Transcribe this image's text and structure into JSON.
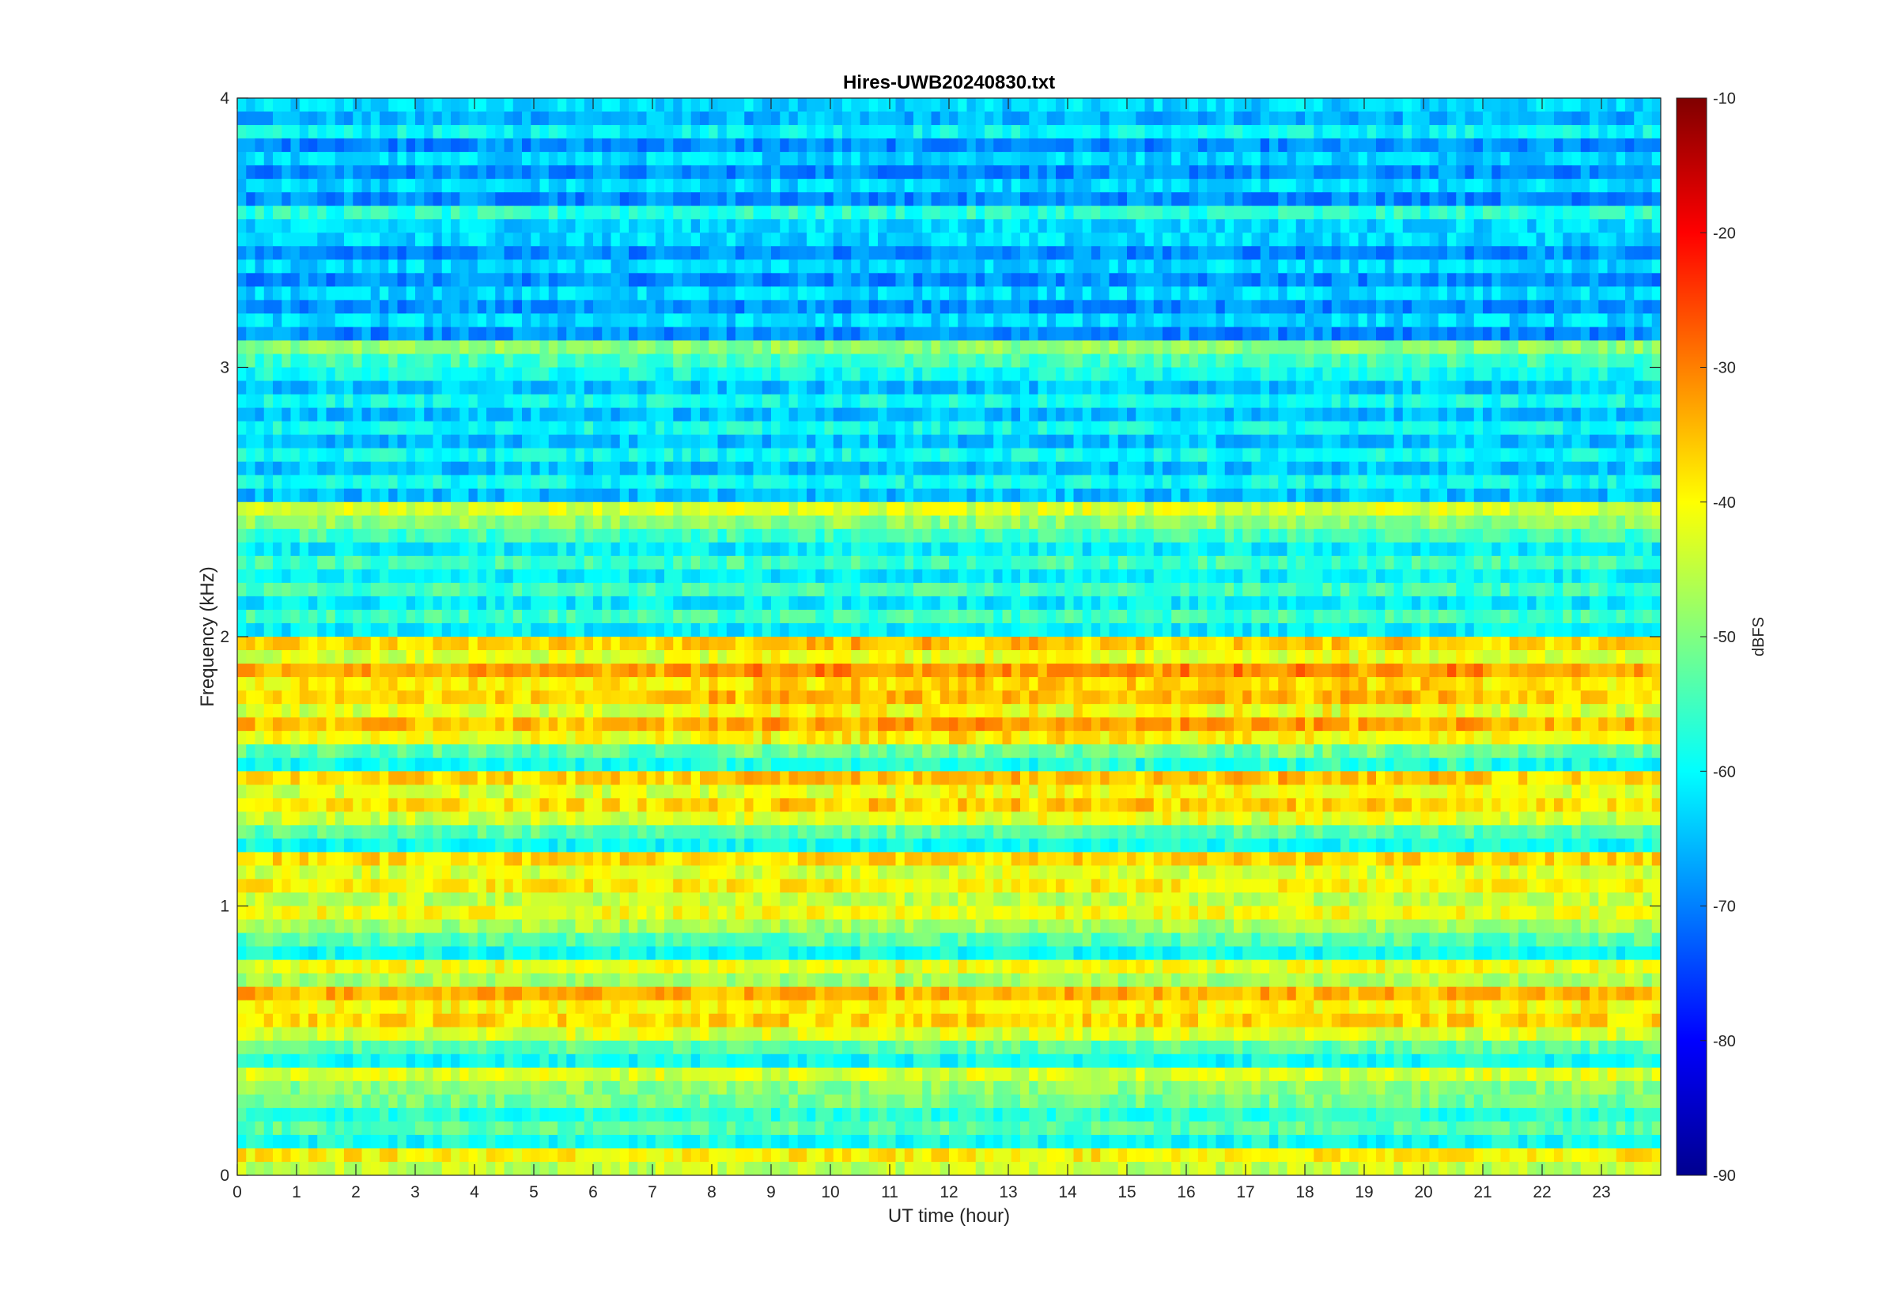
{
  "chart_data": {
    "type": "heatmap",
    "title": "Hires-UWB20240830.txt",
    "xlabel": "UT time (hour)",
    "ylabel": "Frequency (kHz)",
    "xlim": [
      0,
      24
    ],
    "ylim": [
      0,
      4
    ],
    "x_ticks": [
      "0",
      "1",
      "2",
      "3",
      "4",
      "5",
      "6",
      "7",
      "8",
      "9",
      "10",
      "11",
      "12",
      "13",
      "14",
      "15",
      "16",
      "17",
      "18",
      "19",
      "20",
      "21",
      "22",
      "23"
    ],
    "y_ticks": [
      "0",
      "1",
      "2",
      "3",
      "4"
    ],
    "colorbar": {
      "label": "dBFS",
      "range": [
        -90,
        -10
      ],
      "ticks": [
        "-10",
        "-20",
        "-30",
        "-40",
        "-50",
        "-60",
        "-70",
        "-80",
        "-90"
      ],
      "colormap": "jet"
    },
    "bands": [
      {
        "freq_khz": 0.05,
        "level_dbfs": -42
      },
      {
        "freq_khz": 0.15,
        "level_dbfs": -56
      },
      {
        "freq_khz": 0.25,
        "level_dbfs": -54
      },
      {
        "freq_khz": 0.35,
        "level_dbfs": -46
      },
      {
        "freq_khz": 0.55,
        "level_dbfs": -40
      },
      {
        "freq_khz": 0.65,
        "level_dbfs": -37
      },
      {
        "freq_khz": 0.75,
        "level_dbfs": -44
      },
      {
        "freq_khz": 0.95,
        "level_dbfs": -44
      },
      {
        "freq_khz": 1.05,
        "level_dbfs": -42
      },
      {
        "freq_khz": 1.15,
        "level_dbfs": -40
      },
      {
        "freq_khz": 1.35,
        "level_dbfs": -41
      },
      {
        "freq_khz": 1.45,
        "level_dbfs": -40
      },
      {
        "freq_khz": 1.65,
        "level_dbfs": -38
      },
      {
        "freq_khz": 1.75,
        "level_dbfs": -40
      },
      {
        "freq_khz": 1.85,
        "level_dbfs": -36
      },
      {
        "freq_khz": 1.95,
        "level_dbfs": -40
      },
      {
        "freq_khz": 2.45,
        "level_dbfs": -46
      },
      {
        "freq_khz": 3.05,
        "level_dbfs": -52
      },
      {
        "freq_khz": 3.55,
        "level_dbfs": -60
      },
      {
        "freq_khz": 3.9,
        "level_dbfs": -63
      }
    ],
    "grid": false
  }
}
